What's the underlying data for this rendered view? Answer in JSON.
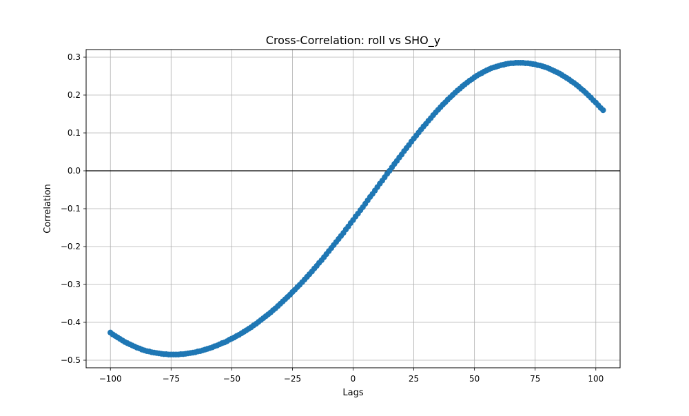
{
  "chart_data": {
    "type": "scatter",
    "title": "Cross-Correlation: roll vs SHO_y",
    "xlabel": "Lags",
    "ylabel": "Correlation",
    "xlim": [
      -110,
      110
    ],
    "ylim": [
      -0.52,
      0.32
    ],
    "xticks": [
      -100,
      -75,
      -50,
      -25,
      0,
      25,
      50,
      75,
      100
    ],
    "xtick_labels": [
      "−100",
      "−75",
      "−50",
      "−25",
      "0",
      "25",
      "50",
      "75",
      "100"
    ],
    "yticks": [
      -0.5,
      -0.4,
      -0.3,
      -0.2,
      -0.1,
      0.0,
      0.1,
      0.2,
      0.3
    ],
    "ytick_labels": [
      "−0.5",
      "−0.4",
      "−0.3",
      "−0.2",
      "−0.1",
      "0.0",
      "0.1",
      "0.2",
      "0.3"
    ],
    "grid": true,
    "zero_line": 0,
    "series": [
      {
        "color": "#1f77b4",
        "marker": "circle",
        "x_start": -100,
        "x_step": 1,
        "values": [
          -0.427,
          -0.432,
          -0.436,
          -0.44,
          -0.444,
          -0.448,
          -0.452,
          -0.455,
          -0.458,
          -0.461,
          -0.464,
          -0.467,
          -0.469,
          -0.472,
          -0.474,
          -0.476,
          -0.477,
          -0.479,
          -0.48,
          -0.481,
          -0.482,
          -0.483,
          -0.484,
          -0.484,
          -0.485,
          -0.485,
          -0.485,
          -0.485,
          -0.485,
          -0.484,
          -0.484,
          -0.483,
          -0.482,
          -0.481,
          -0.48,
          -0.479,
          -0.477,
          -0.476,
          -0.474,
          -0.472,
          -0.47,
          -0.468,
          -0.466,
          -0.463,
          -0.461,
          -0.458,
          -0.455,
          -0.453,
          -0.45,
          -0.446,
          -0.443,
          -0.44,
          -0.436,
          -0.433,
          -0.429,
          -0.425,
          -0.421,
          -0.417,
          -0.413,
          -0.408,
          -0.404,
          -0.399,
          -0.394,
          -0.389,
          -0.384,
          -0.379,
          -0.374,
          -0.368,
          -0.363,
          -0.357,
          -0.351,
          -0.345,
          -0.339,
          -0.333,
          -0.327,
          -0.32,
          -0.314,
          -0.307,
          -0.301,
          -0.294,
          -0.287,
          -0.28,
          -0.273,
          -0.266,
          -0.258,
          -0.251,
          -0.243,
          -0.236,
          -0.228,
          -0.22,
          -0.212,
          -0.204,
          -0.196,
          -0.188,
          -0.18,
          -0.172,
          -0.164,
          -0.155,
          -0.147,
          -0.138,
          -0.13,
          -0.121,
          -0.113,
          -0.104,
          -0.096,
          -0.087,
          -0.078,
          -0.069,
          -0.061,
          -0.052,
          -0.043,
          -0.034,
          -0.026,
          -0.017,
          -0.008,
          0.0,
          0.009,
          0.018,
          0.026,
          0.035,
          0.043,
          0.052,
          0.06,
          0.068,
          0.077,
          0.085,
          0.093,
          0.101,
          0.109,
          0.117,
          0.124,
          0.132,
          0.139,
          0.147,
          0.154,
          0.161,
          0.168,
          0.175,
          0.181,
          0.188,
          0.194,
          0.2,
          0.206,
          0.212,
          0.217,
          0.223,
          0.228,
          0.233,
          0.238,
          0.242,
          0.247,
          0.251,
          0.255,
          0.258,
          0.262,
          0.265,
          0.268,
          0.271,
          0.273,
          0.275,
          0.277,
          0.279,
          0.28,
          0.282,
          0.283,
          0.284,
          0.284,
          0.285,
          0.285,
          0.285,
          0.285,
          0.284,
          0.284,
          0.283,
          0.282,
          0.281,
          0.279,
          0.278,
          0.276,
          0.274,
          0.272,
          0.269,
          0.266,
          0.263,
          0.26,
          0.257,
          0.253,
          0.249,
          0.245,
          0.241,
          0.236,
          0.232,
          0.227,
          0.222,
          0.216,
          0.211,
          0.205,
          0.199,
          0.193,
          0.186,
          0.18,
          0.173,
          0.166,
          0.16
        ]
      }
    ]
  }
}
